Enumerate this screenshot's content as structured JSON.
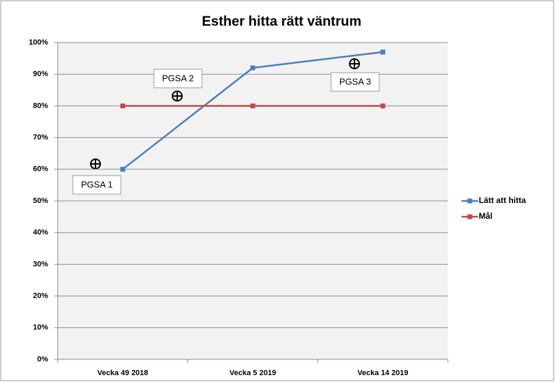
{
  "chart_data": {
    "type": "line",
    "title": "Esther hitta rätt väntrum",
    "categories": [
      "Vecka 49 2018",
      "Vecka 5 2019",
      "Vecka 14 2019"
    ],
    "series": [
      {
        "name": "Lätt att hitta",
        "color": "#4a7ebb",
        "values": [
          60,
          92,
          97
        ]
      },
      {
        "name": "Mål",
        "color": "#be4b48",
        "values": [
          80,
          80,
          80
        ]
      }
    ],
    "ylim": [
      0,
      100
    ],
    "yticks": [
      {
        "value": 0,
        "label": "0%"
      },
      {
        "value": 10,
        "label": "10%"
      },
      {
        "value": 20,
        "label": "20%"
      },
      {
        "value": 30,
        "label": "30%"
      },
      {
        "value": 40,
        "label": "40%"
      },
      {
        "value": 50,
        "label": "50%"
      },
      {
        "value": 60,
        "label": "60%"
      },
      {
        "value": 70,
        "label": "70%"
      },
      {
        "value": 80,
        "label": "80%"
      },
      {
        "value": 90,
        "label": "90%"
      },
      {
        "value": 100,
        "label": "100%"
      }
    ],
    "grid": true,
    "legend": "right",
    "annotations": [
      "PGSA 1",
      "PGSA 2",
      "PGSA 3"
    ]
  }
}
